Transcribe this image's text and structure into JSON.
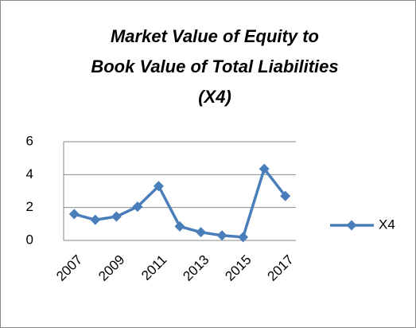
{
  "chart_data": {
    "type": "line",
    "title": [
      "Market Value of Equity to",
      "Book Value of Total Liabilities",
      "(X4)"
    ],
    "categories": [
      "2007",
      null,
      "2009",
      null,
      "2011",
      null,
      "2013",
      null,
      "2015",
      null,
      "2017"
    ],
    "series": [
      {
        "name": "X4",
        "color": "#4a7ebb",
        "values": [
          1.6,
          1.25,
          1.45,
          2.05,
          3.3,
          0.85,
          0.5,
          0.3,
          0.2,
          4.35,
          2.7
        ]
      }
    ],
    "ylim": [
      0,
      6
    ],
    "yticks": [
      0,
      2,
      4,
      6
    ],
    "grid": true,
    "legend": "right"
  }
}
